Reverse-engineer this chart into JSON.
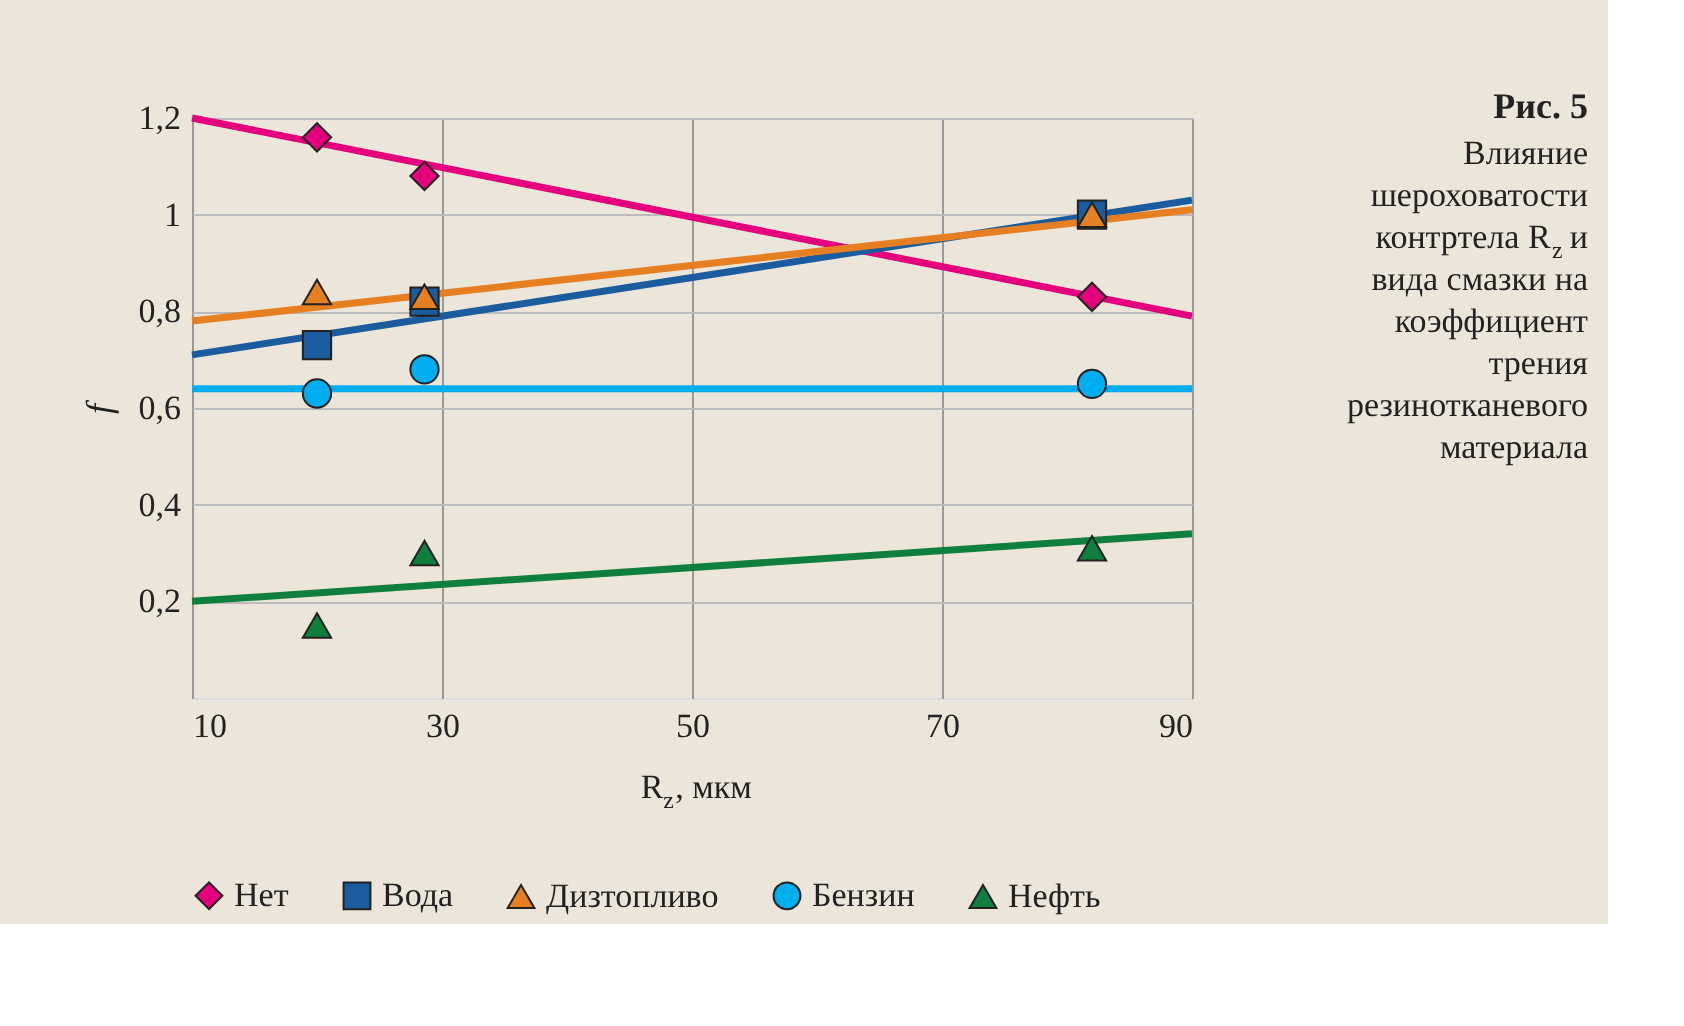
{
  "chart_data": {
    "type": "scatter",
    "title": "Рис. 5",
    "subtitle": "Влияние шероховатости контртела R$_{z}$ и вида смазки на коэффициент трения резинотканевого материала",
    "xlabel": "R$_{z}$, мкм",
    "ylabel": "f",
    "xlim": [
      10,
      90
    ],
    "xticks": [
      10,
      30,
      50,
      70,
      90
    ],
    "ylim": [
      0,
      1.2
    ],
    "yticks": [
      {
        "value": 0.2,
        "label": "0,2"
      },
      {
        "value": 0.4,
        "label": "0,4"
      },
      {
        "value": 0.6,
        "label": "0,6"
      },
      {
        "value": 0.8,
        "label": "0,8"
      },
      {
        "value": 1,
        "label": "1"
      },
      {
        "value": 1.2,
        "label": "1,2"
      }
    ],
    "grid": true,
    "legend": "bottom",
    "series": [
      {
        "type": "line",
        "color": "#e4007c",
        "x": [
          10,
          90
        ],
        "values": [
          1.2,
          0.79
        ]
      },
      {
        "type": "line",
        "color": "#1a5c9e",
        "x": [
          10,
          90
        ],
        "values": [
          0.71,
          1.03
        ]
      },
      {
        "type": "line",
        "color": "#e67e22",
        "x": [
          10,
          90
        ],
        "values": [
          0.78,
          1.01
        ]
      },
      {
        "type": "line",
        "color": "#00aeef",
        "x": [
          10,
          90
        ],
        "values": [
          0.64,
          0.64
        ]
      },
      {
        "type": "line",
        "color": "#0f7f3f",
        "x": [
          10,
          90
        ],
        "values": [
          0.2,
          0.34
        ]
      },
      {
        "name": "Нет",
        "type": "scatter",
        "marker": "diamond",
        "color": "#e4007c",
        "x": [
          20,
          28.6,
          82
        ],
        "values": [
          1.16,
          1.08,
          0.83
        ]
      },
      {
        "name": "Вода",
        "type": "scatter",
        "marker": "square",
        "color": "#1a5c9e",
        "x": [
          20,
          28.6,
          82
        ],
        "values": [
          0.73,
          0.82,
          1.0
        ]
      },
      {
        "name": "Дизтопливо",
        "type": "scatter",
        "marker": "triangle",
        "color": "#e67e22",
        "x": [
          20,
          28.6,
          82
        ],
        "values": [
          0.84,
          0.83,
          1.0
        ]
      },
      {
        "name": "Бензин",
        "type": "scatter",
        "marker": "circle",
        "color": "#00aeef",
        "x": [
          20,
          28.6,
          82
        ],
        "values": [
          0.63,
          0.68,
          0.65
        ]
      },
      {
        "name": "Нефть",
        "type": "scatter",
        "marker": "triangle",
        "color": "#0f7f3f",
        "x": [
          20,
          28.6,
          82
        ],
        "values": [
          0.15,
          0.3,
          0.31
        ]
      }
    ]
  }
}
